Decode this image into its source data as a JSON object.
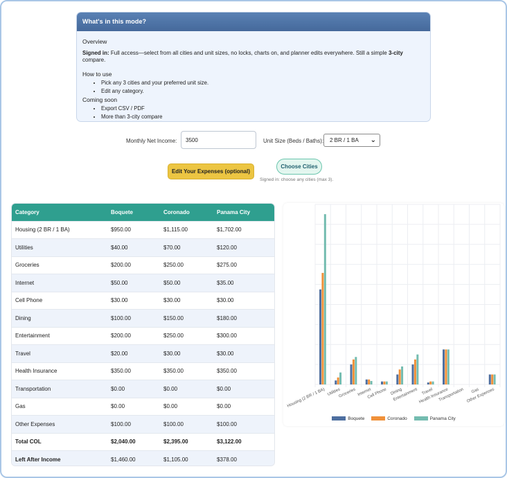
{
  "info": {
    "title": "What's in this mode?",
    "overview": "Overview",
    "signed_in_label": "Signed in:",
    "signed_in_text": " Full access—select from all cities and unit sizes, no locks, charts on, and planner edits everywhere. Still a simple ",
    "three_city": "3-city",
    "compare": " compare.",
    "how_to_use": "How to use",
    "how_items": [
      "Pick any 3 cities and your preferred unit size.",
      "Edit any category."
    ],
    "coming_soon": "Coming soon",
    "soon_items": [
      "Export CSV / PDF",
      "More than 3-city compare"
    ]
  },
  "form": {
    "income_label": "Monthly Net Income:",
    "income_value": "3500",
    "unit_label": "Unit Size (Beds / Baths):",
    "unit_value": "2 BR / 1 BA"
  },
  "buttons": {
    "edit_expenses": "Edit Your Expenses (optional)",
    "choose_cities": "Choose Cities",
    "cities_note": "Signed in: choose any cities (max 3)."
  },
  "table": {
    "headers": [
      "Category",
      "Boquete",
      "Coronado",
      "Panama City"
    ],
    "rows": [
      [
        "Housing (2 BR / 1 BA)",
        "$950.00",
        "$1,115.00",
        "$1,702.00"
      ],
      [
        "Utilities",
        "$40.00",
        "$70.00",
        "$120.00"
      ],
      [
        "Groceries",
        "$200.00",
        "$250.00",
        "$275.00"
      ],
      [
        "Internet",
        "$50.00",
        "$50.00",
        "$35.00"
      ],
      [
        "Cell Phone",
        "$30.00",
        "$30.00",
        "$30.00"
      ],
      [
        "Dining",
        "$100.00",
        "$150.00",
        "$180.00"
      ],
      [
        "Entertainment",
        "$200.00",
        "$250.00",
        "$300.00"
      ],
      [
        "Travel",
        "$20.00",
        "$30.00",
        "$30.00"
      ],
      [
        "Health Insurance",
        "$350.00",
        "$350.00",
        "$350.00"
      ],
      [
        "Transportation",
        "$0.00",
        "$0.00",
        "$0.00"
      ],
      [
        "Gas",
        "$0.00",
        "$0.00",
        "$0.00"
      ],
      [
        "Other Expenses",
        "$100.00",
        "$100.00",
        "$100.00"
      ]
    ],
    "total": [
      "Total COL",
      "$2,040.00",
      "$2,395.00",
      "$3,122.00"
    ],
    "left": [
      "Left After Income",
      "$1,460.00",
      "$1,105.00",
      "$378.00"
    ]
  },
  "colors": {
    "boquete": "#4e6fa0",
    "coronado": "#f0913a",
    "panama": "#74bcb0",
    "header_teal": "#2f9f8f"
  },
  "chart_data": {
    "type": "bar",
    "categories": [
      "Housing (2 BR / 1 BA)",
      "Utilities",
      "Groceries",
      "Internet",
      "Cell Phone",
      "Dining",
      "Entertainment",
      "Travel",
      "Health Insurance",
      "Transportation",
      "Gas",
      "Other Expenses"
    ],
    "series": [
      {
        "name": "Boquete",
        "values": [
          950,
          40,
          200,
          50,
          30,
          100,
          200,
          20,
          350,
          0,
          0,
          100
        ]
      },
      {
        "name": "Coronado",
        "values": [
          1115,
          70,
          250,
          50,
          30,
          150,
          250,
          30,
          350,
          0,
          0,
          100
        ]
      },
      {
        "name": "Panama City",
        "values": [
          1702,
          120,
          275,
          35,
          30,
          180,
          300,
          30,
          350,
          0,
          0,
          100
        ]
      }
    ],
    "ylim": [
      0,
      1800
    ],
    "grid": true,
    "legend": "bottom"
  }
}
